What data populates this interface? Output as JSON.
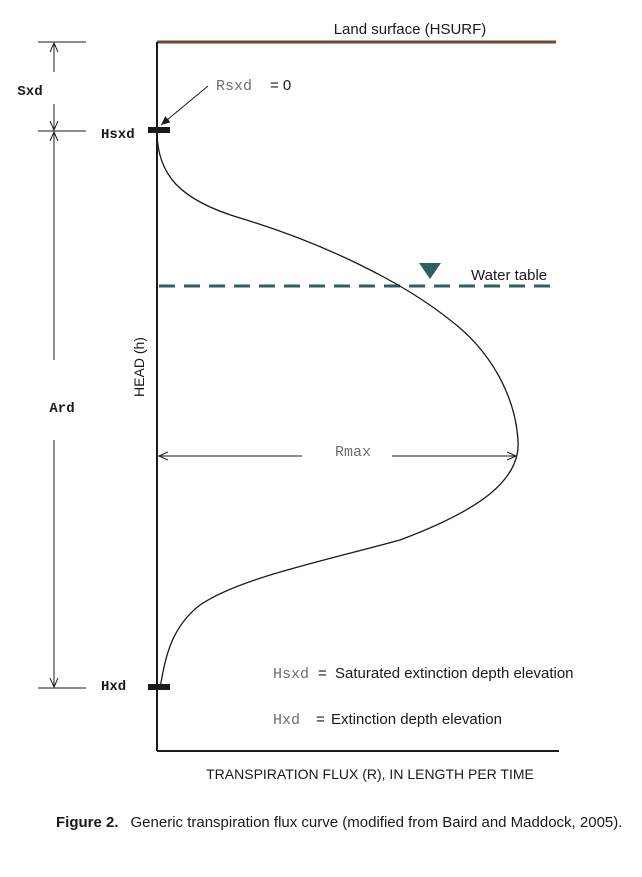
{
  "diagram": {
    "land_surface_label": "Land surface (HSURF)",
    "water_table_label": "Water table",
    "sxd_label": "Sxd",
    "ard_label": "Ard",
    "hsxd_label": "Hsxd",
    "hxd_label": "Hxd",
    "rsxd_label": "Rsxd",
    "rsxd_value": "= 0",
    "rmax_label": "Rmax",
    "y_axis_label": "HEAD (h)",
    "x_axis_label": "TRANSPIRATION FLUX (R), IN LENGTH PER TIME",
    "legend": [
      {
        "symbol": "Hsxd",
        "eq": "=",
        "text": "Saturated extinction depth elevation"
      },
      {
        "symbol": "Hxd",
        "eq": "=",
        "text": "Extinction depth elevation"
      }
    ],
    "colors": {
      "land_surface": "#6b4a30",
      "water_table": "#2f5f62",
      "axis": "#1a1a1a"
    }
  },
  "caption": {
    "label": "Figure 2.",
    "text": "Generic transpiration flux curve (modified from Baird and Maddock, 2005)."
  }
}
